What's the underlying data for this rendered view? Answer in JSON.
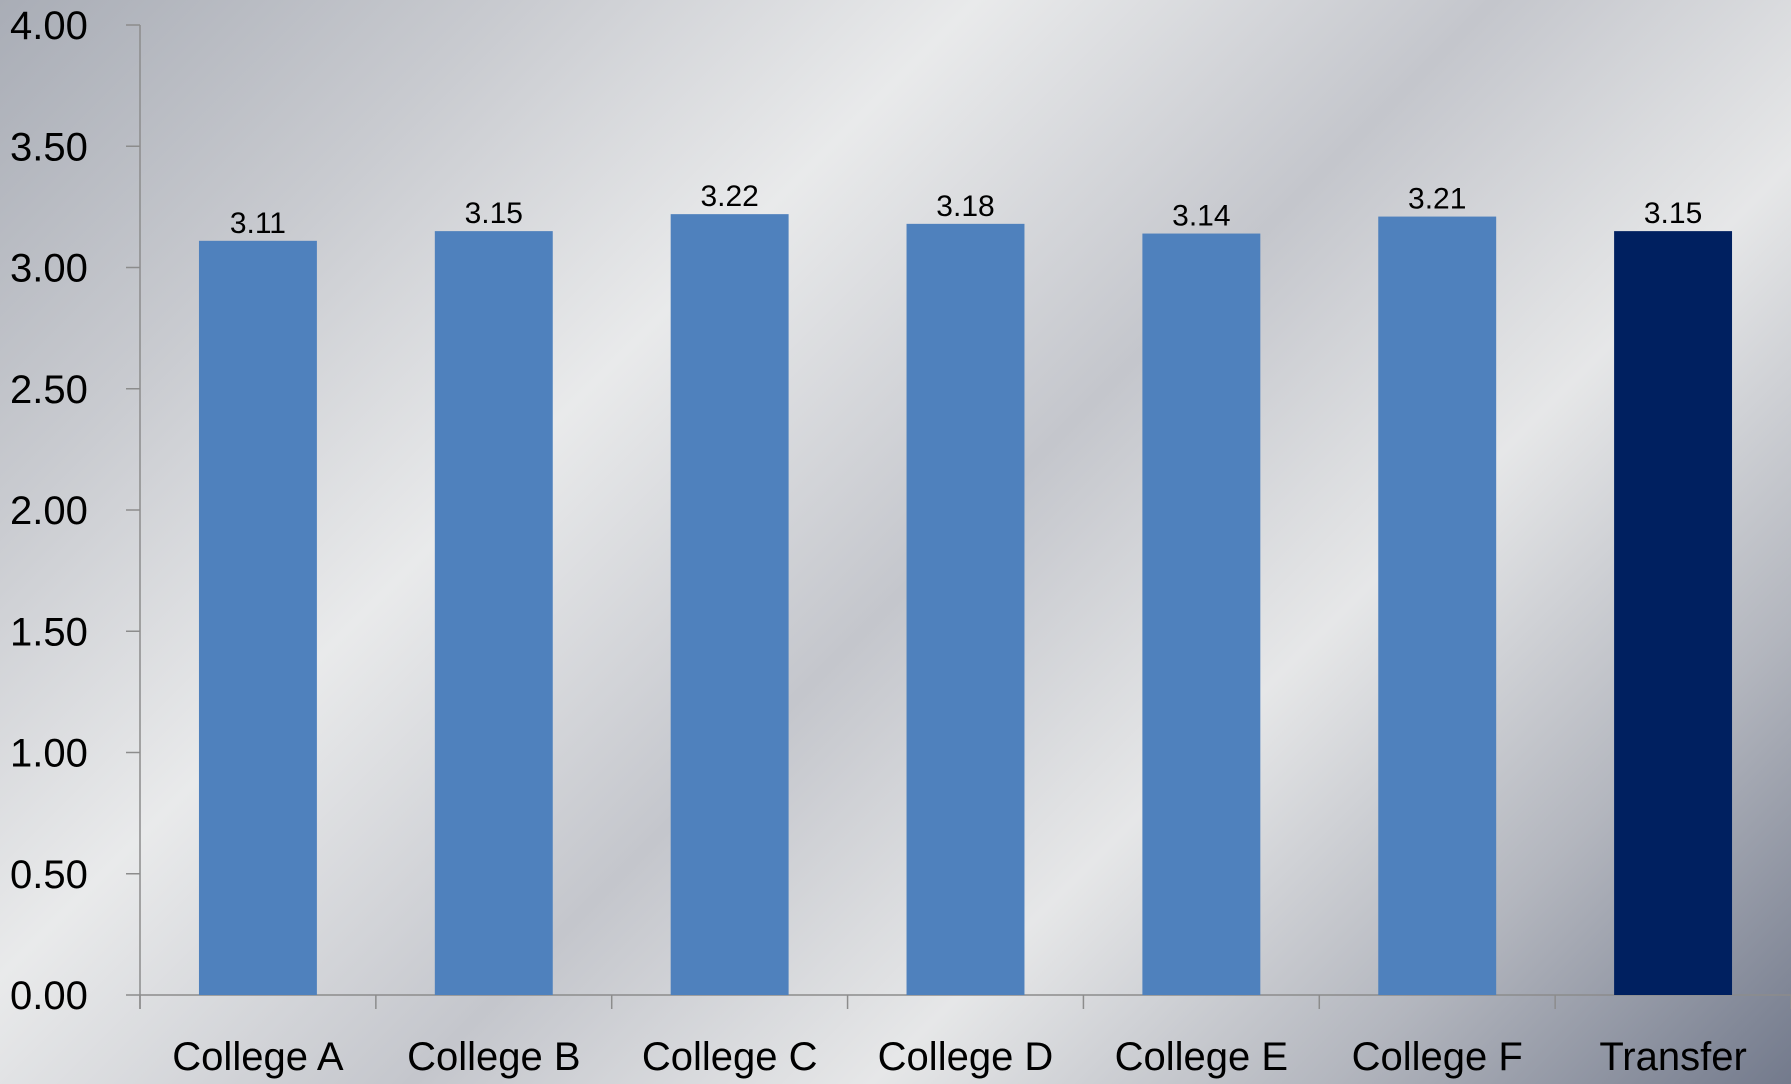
{
  "chart_data": {
    "type": "bar",
    "title": "",
    "xlabel": "",
    "ylabel": "",
    "categories": [
      "College A",
      "College B",
      "College C",
      "College D",
      "College E",
      "College F",
      "Transfer"
    ],
    "values": [
      3.11,
      3.15,
      3.22,
      3.18,
      3.14,
      3.21,
      3.15
    ],
    "data_labels": [
      "3.11",
      "3.15",
      "3.22",
      "3.18",
      "3.14",
      "3.21",
      "3.15"
    ],
    "ylim": [
      0,
      4
    ],
    "yticks": [
      "0.00",
      "0.50",
      "1.00",
      "1.50",
      "2.00",
      "2.50",
      "3.00",
      "3.50",
      "4.00"
    ],
    "grid": false,
    "legend": "none",
    "colors": {
      "bar": "#4f81bd",
      "highlight_bar": "#002060",
      "axis": "#8c8c8c"
    },
    "highlight_category": "Transfer"
  }
}
